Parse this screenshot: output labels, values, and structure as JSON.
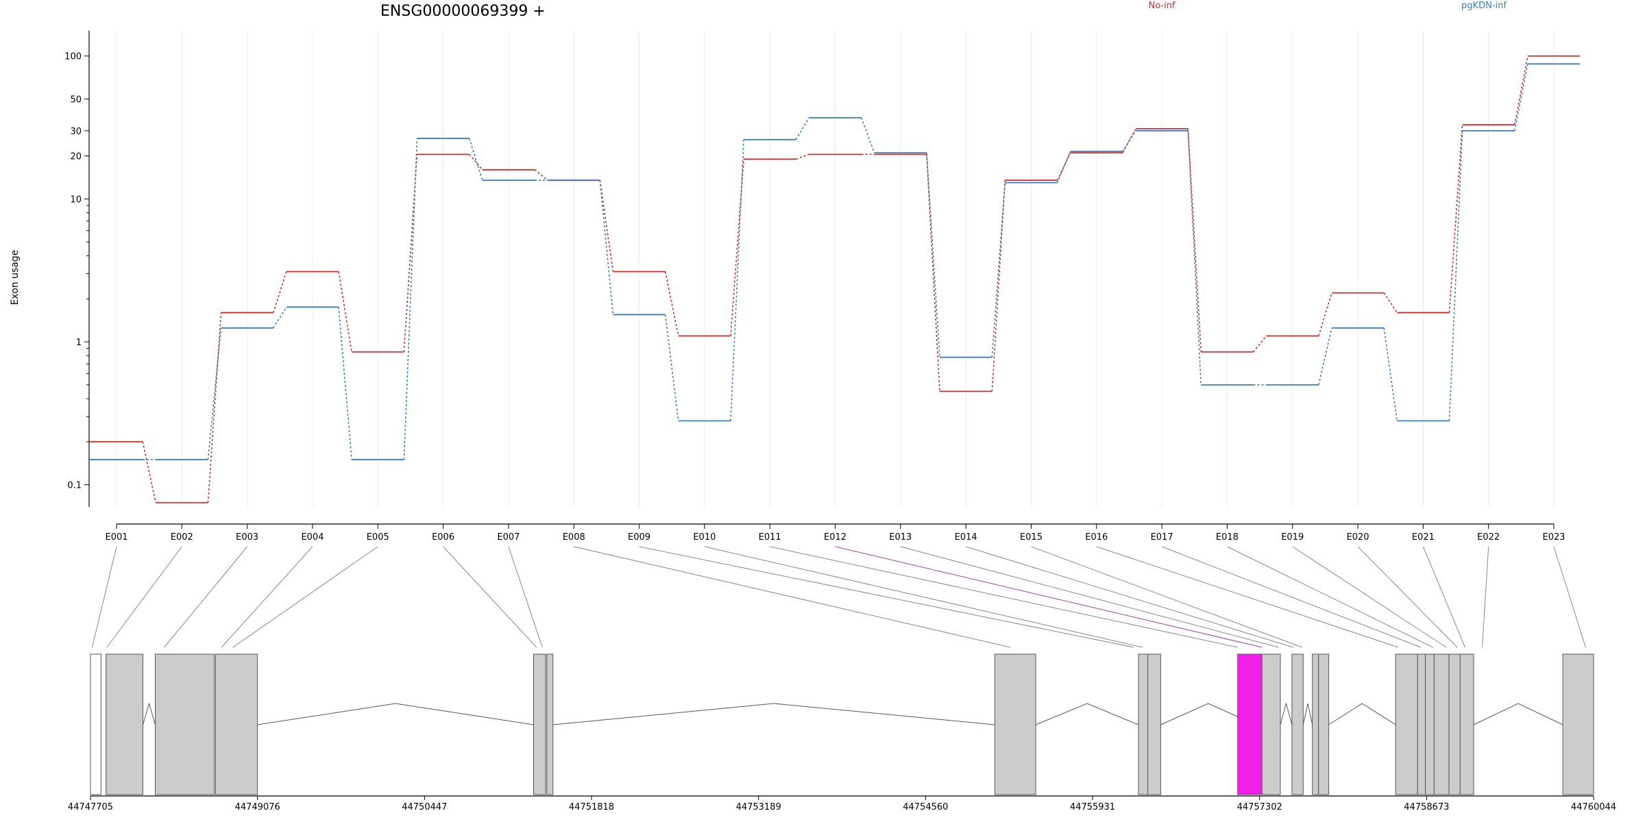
{
  "chart_data": {
    "type": "line",
    "title": "ENSG00000069399 +",
    "ylabel": "Exon usage",
    "y_scale": "log",
    "ylim": [
      0.07,
      150
    ],
    "y_ticks": [
      0.1,
      1,
      10,
      20,
      30,
      50,
      100
    ],
    "y_tick_labels": [
      "0.1",
      "1",
      "10",
      "20",
      "30",
      "50",
      "100"
    ],
    "categories": [
      "E001",
      "E002",
      "E003",
      "E004",
      "E005",
      "E006",
      "E007",
      "E008",
      "E009",
      "E010",
      "E011",
      "E012",
      "E013",
      "E014",
      "E015",
      "E016",
      "E017",
      "E018",
      "E019",
      "E020",
      "E021",
      "E022",
      "E023"
    ],
    "highlighted_exon": "E012",
    "highlight_color": "#f01ee6",
    "series": [
      {
        "name": "No-inf",
        "color": "#d22b2b",
        "values": [
          0.2,
          0.075,
          1.6,
          3.1,
          0.85,
          20.5,
          16,
          13.5,
          3.1,
          1.1,
          19,
          20.5,
          20.5,
          0.45,
          13.5,
          21,
          31,
          0.85,
          1.1,
          2.2,
          1.6,
          33,
          100
        ]
      },
      {
        "name": "pgKDN-inf",
        "color": "#3b7dbf",
        "values": [
          0.15,
          0.15,
          1.25,
          1.75,
          0.15,
          26.5,
          13.5,
          13.5,
          1.55,
          0.28,
          26,
          37,
          21,
          0.78,
          13,
          21.5,
          30,
          0.5,
          0.5,
          1.25,
          0.28,
          30,
          88
        ]
      }
    ],
    "genomic_axis": {
      "tick_labels": [
        "44747705",
        "44749076",
        "44750447",
        "44751818",
        "44753189",
        "44754560",
        "44755931",
        "44757302",
        "44758673",
        "44760044"
      ]
    },
    "exon_map": {
      "fill_color": "#cccccc",
      "exon_fractions": [
        0.0011,
        0.0109,
        0.0491,
        0.0872,
        0.0947,
        0.2967,
        0.3006,
        0.612,
        0.6941,
        0.6998,
        0.7632,
        0.7794,
        0.7904,
        0.8001,
        0.8061,
        0.87,
        0.8851,
        0.8931,
        0.9019,
        0.9093,
        0.9145,
        0.9259,
        0.9947
      ]
    }
  }
}
